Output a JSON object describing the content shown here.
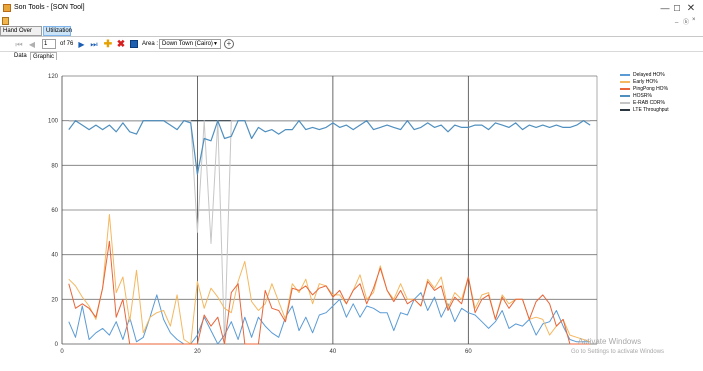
{
  "window": {
    "title": "Son Tools - [SON Tool]",
    "minimize_glyph": "—",
    "maximize_glyph": "☐",
    "close_glyph": "✕"
  },
  "menubar": {
    "mdi_min": "_",
    "mdi_restore": "ⓑ",
    "mdi_close": "×"
  },
  "top_tabs": [
    {
      "label": "Hand Over",
      "active": false
    },
    {
      "label": "Utilization",
      "active": true
    }
  ],
  "toolbar": {
    "first_icon": "first-page-icon",
    "prev_icon": "prev-page-icon",
    "page_value": "1",
    "page_of": "of 76",
    "next_icon": "next-page-icon",
    "last_icon": "last-page-icon",
    "area_label": "Area :",
    "area_value": "Down Town (Cairo)"
  },
  "sub_tabs": [
    {
      "label": "Data",
      "active": false
    },
    {
      "label": "Graphic",
      "active": true
    }
  ],
  "watermark": {
    "line1": "Activate Windows",
    "line2": "Go to Settings to activate Windows"
  },
  "chart_data": {
    "type": "line",
    "title": "",
    "xlabel": "",
    "ylabel": "",
    "xlim": [
      0,
      79
    ],
    "ylim": [
      0,
      120
    ],
    "x_ticks": [
      0,
      20,
      40,
      60
    ],
    "y_ticks": [
      0,
      20,
      40,
      60,
      80,
      100,
      120
    ],
    "grid": true,
    "legend": "top-right",
    "x": [
      1,
      2,
      3,
      4,
      5,
      6,
      7,
      8,
      9,
      10,
      11,
      12,
      13,
      14,
      15,
      16,
      17,
      18,
      19,
      20,
      21,
      22,
      23,
      24,
      25,
      26,
      27,
      28,
      29,
      30,
      31,
      32,
      33,
      34,
      35,
      36,
      37,
      38,
      39,
      40,
      41,
      42,
      43,
      44,
      45,
      46,
      47,
      48,
      49,
      50,
      51,
      52,
      53,
      54,
      55,
      56,
      57,
      58,
      59,
      60,
      61,
      62,
      63,
      64,
      65,
      66,
      67,
      68,
      69,
      70,
      71,
      72,
      73,
      74,
      75,
      76,
      77,
      78
    ],
    "series": [
      {
        "name": "Delayed HO%",
        "color": "#5b9bd5",
        "values": [
          10,
          3,
          17,
          2,
          5,
          7,
          4,
          10,
          2,
          12,
          1,
          3,
          12,
          22,
          11,
          5,
          2,
          0,
          0,
          4,
          12,
          6,
          0,
          4,
          10,
          2,
          12,
          3,
          12,
          8,
          5,
          3,
          12,
          17,
          6,
          12,
          5,
          13,
          14,
          17,
          20,
          12,
          18,
          12,
          17,
          16,
          14,
          14,
          6,
          14,
          13,
          20,
          23,
          15,
          21,
          12,
          18,
          10,
          16,
          14,
          13,
          10,
          7,
          10,
          15,
          7,
          9,
          8,
          11,
          4,
          9,
          10,
          15,
          8,
          2,
          1,
          1,
          1
        ]
      },
      {
        "name": "Early HO%",
        "color": "#f4b860",
        "values": [
          29,
          26,
          21,
          17,
          11,
          25,
          58,
          23,
          30,
          10,
          33,
          5,
          12,
          14,
          15,
          8,
          22,
          2,
          0,
          28,
          16,
          25,
          21,
          16,
          14,
          28,
          37,
          19,
          15,
          18,
          27,
          19,
          11,
          27,
          23,
          29,
          18,
          27,
          26,
          22,
          22,
          18,
          24,
          31,
          20,
          23,
          35,
          24,
          20,
          27,
          20,
          20,
          17,
          29,
          25,
          30,
          16,
          23,
          20,
          30,
          16,
          22,
          23,
          11,
          22,
          18,
          20,
          20,
          11,
          12,
          11,
          4,
          8,
          11,
          4,
          3,
          2,
          1
        ]
      },
      {
        "name": "PingPong HO%",
        "color": "#e8663a",
        "values": [
          27,
          16,
          18,
          16,
          12,
          25,
          46,
          12,
          20,
          0,
          0,
          0,
          0,
          0,
          0,
          0,
          0,
          0,
          0,
          0,
          13,
          8,
          12,
          0,
          23,
          27,
          0,
          0,
          0,
          24,
          16,
          15,
          10,
          25,
          24,
          26,
          22,
          25,
          26,
          21,
          24,
          18,
          24,
          27,
          18,
          25,
          34,
          24,
          19,
          24,
          18,
          20,
          17,
          28,
          24,
          26,
          15,
          21,
          18,
          30,
          14,
          20,
          22,
          11,
          21,
          16,
          20,
          20,
          11,
          19,
          22,
          18,
          8,
          11,
          0,
          0,
          0,
          0
        ]
      },
      {
        "name": "HOSR%",
        "color": "#4f8fbf",
        "values": [
          96,
          100,
          98,
          96,
          98,
          96,
          98,
          95,
          99,
          95,
          94,
          100,
          100,
          100,
          100,
          98,
          96,
          100,
          99,
          76,
          92,
          91,
          100,
          92,
          93,
          100,
          100,
          92,
          97,
          95,
          96,
          94,
          96,
          96,
          100,
          96,
          97,
          96,
          97,
          99,
          97,
          98,
          96,
          98,
          100,
          96,
          97,
          98,
          97,
          96,
          100,
          96,
          97,
          99,
          97,
          98,
          95,
          98,
          97,
          97,
          98,
          98,
          96,
          99,
          98,
          97,
          99,
          96,
          98,
          97,
          98,
          97,
          98,
          97,
          97,
          98,
          100,
          98
        ]
      },
      {
        "name": "E-RAB CDR%",
        "color": "#c6c6c6",
        "values": [
          100,
          100,
          100,
          100,
          100,
          100,
          100,
          100,
          100,
          100,
          100,
          100,
          100,
          100,
          100,
          100,
          100,
          100,
          100,
          50,
          100,
          45,
          100,
          0,
          100,
          100,
          100,
          100,
          100,
          100,
          100,
          100,
          100,
          100,
          100,
          100,
          100,
          100,
          100,
          100,
          100,
          100,
          100,
          100,
          100,
          100,
          100,
          100,
          100,
          100,
          100,
          100,
          100,
          100,
          100,
          100,
          100,
          100,
          100,
          100,
          100,
          100,
          100,
          100,
          100,
          100,
          100,
          100,
          100,
          100,
          100,
          100,
          100,
          100,
          100,
          100,
          100,
          100
        ]
      },
      {
        "name": "LTE Throughput",
        "color": "#2a3640",
        "values": [
          100,
          100,
          100,
          100,
          100,
          100,
          100,
          100,
          100,
          100,
          100,
          100,
          100,
          100,
          100,
          100,
          100,
          100,
          100,
          100,
          100,
          100,
          100,
          100,
          100,
          100,
          100,
          100,
          100,
          100,
          100,
          100,
          100,
          100,
          100,
          100,
          100,
          100,
          100,
          100,
          100,
          100,
          100,
          100,
          100,
          100,
          100,
          100,
          100,
          100,
          100,
          100,
          100,
          100,
          100,
          100,
          100,
          100,
          100,
          100,
          100,
          100,
          100,
          100,
          100,
          100,
          100,
          100,
          100,
          100,
          100,
          100,
          100,
          100,
          100,
          100,
          100,
          100
        ]
      }
    ]
  }
}
